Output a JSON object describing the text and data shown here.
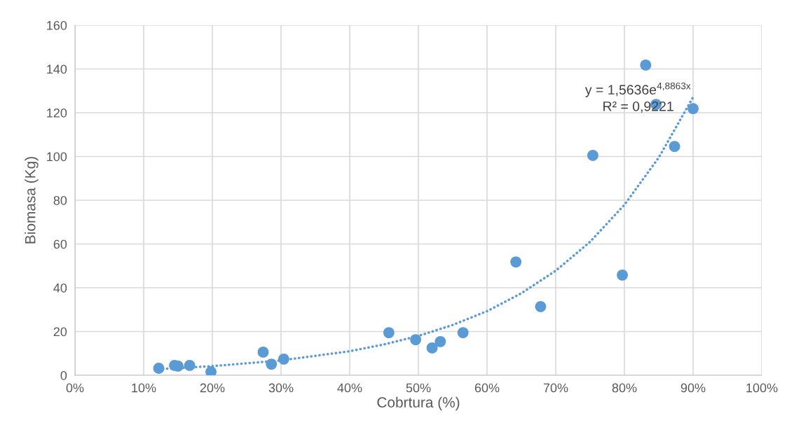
{
  "chart_data": {
    "type": "scatter",
    "xlabel": "Cobrtura (%)",
    "ylabel": "Biomasa (Kg)",
    "xlim": [
      0,
      1
    ],
    "ylim": [
      0,
      160
    ],
    "xticks": [
      {
        "value": 0,
        "label": "0%"
      },
      {
        "value": 0.1,
        "label": "10%"
      },
      {
        "value": 0.2,
        "label": "20%"
      },
      {
        "value": 0.3,
        "label": "30%"
      },
      {
        "value": 0.4,
        "label": "40%"
      },
      {
        "value": 0.5,
        "label": "50%"
      },
      {
        "value": 0.6,
        "label": "60%"
      },
      {
        "value": 0.7,
        "label": "70%"
      },
      {
        "value": 0.8,
        "label": "80%"
      },
      {
        "value": 0.9,
        "label": "90%"
      },
      {
        "value": 1,
        "label": "100%"
      }
    ],
    "yticks": [
      0,
      20,
      40,
      60,
      80,
      100,
      120,
      140,
      160
    ],
    "grid": true,
    "legend": false,
    "series": [
      {
        "marker": "circle",
        "color": "#5b9bd5",
        "x": [
          0.122,
          0.145,
          0.15,
          0.167,
          0.198,
          0.274,
          0.286,
          0.304,
          0.457,
          0.496,
          0.52,
          0.532,
          0.565,
          0.642,
          0.678,
          0.754,
          0.797,
          0.831,
          0.846,
          0.873,
          0.9
        ],
        "values": [
          3.2,
          4.5,
          4.2,
          4.5,
          1.6,
          10.6,
          5.1,
          7.4,
          19.5,
          16.3,
          12.5,
          15.4,
          19.5,
          51.8,
          31.4,
          100.5,
          45.8,
          141.8,
          123.8,
          104.6,
          121.9
        ]
      },
      {
        "type": "line",
        "marker": "none",
        "line_style": "dotted",
        "color": "#5b9bd5",
        "x": [
          0.122,
          0.2,
          0.3,
          0.4,
          0.45,
          0.5,
          0.55,
          0.6,
          0.65,
          0.7,
          0.75,
          0.8,
          0.85,
          0.9
        ],
        "values": [
          2.8,
          4.2,
          6.8,
          11.0,
          14.1,
          18.0,
          23.0,
          29.3,
          37.5,
          47.8,
          61.0,
          77.9,
          99.5,
          127.1
        ]
      }
    ],
    "annotations": [
      "y = 1,5636e$^{4,8863x}$",
      "R² = 0,9221"
    ]
  }
}
